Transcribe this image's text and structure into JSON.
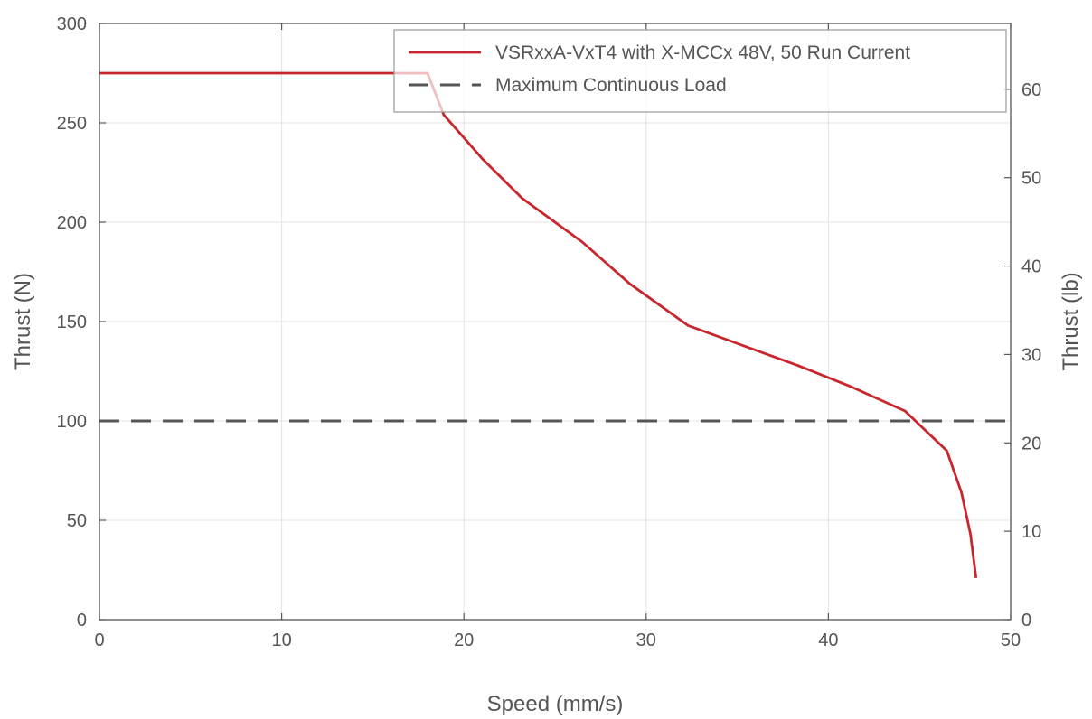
{
  "chart_data": {
    "type": "line",
    "xlabel": "Speed (mm/s)",
    "ylabel": "Thrust (N)",
    "ylabel_right": "Thrust (lb)",
    "xlim": [
      0,
      50
    ],
    "ylim": [
      0,
      300
    ],
    "ylim_right": [
      0,
      67.44
    ],
    "x_ticks": [
      0,
      10,
      20,
      30,
      40,
      50
    ],
    "y_ticks": [
      0,
      50,
      100,
      150,
      200,
      250,
      300
    ],
    "y_ticks_right": [
      0,
      10,
      20,
      30,
      40,
      50,
      60
    ],
    "grid": true,
    "legend_position": "top-right",
    "series": [
      {
        "name": "VSRxxA-VxT4 with X-MCCx 48V, 50 Run Current",
        "color": "#c8262c",
        "style": "solid",
        "x": [
          0,
          18,
          18.9,
          21,
          23.2,
          26.5,
          29.1,
          32.3,
          35.3,
          38.3,
          41.3,
          44.2,
          46.5,
          47.3,
          47.8,
          48.1
        ],
        "y": [
          275,
          275,
          254,
          232,
          212,
          190,
          169,
          148,
          138,
          128,
          117,
          105,
          85,
          64,
          43,
          21
        ]
      },
      {
        "name": "Maximum Continuous Load",
        "color": "#555555",
        "style": "dashed",
        "x": [
          0,
          50
        ],
        "y": [
          100,
          100
        ]
      }
    ]
  }
}
